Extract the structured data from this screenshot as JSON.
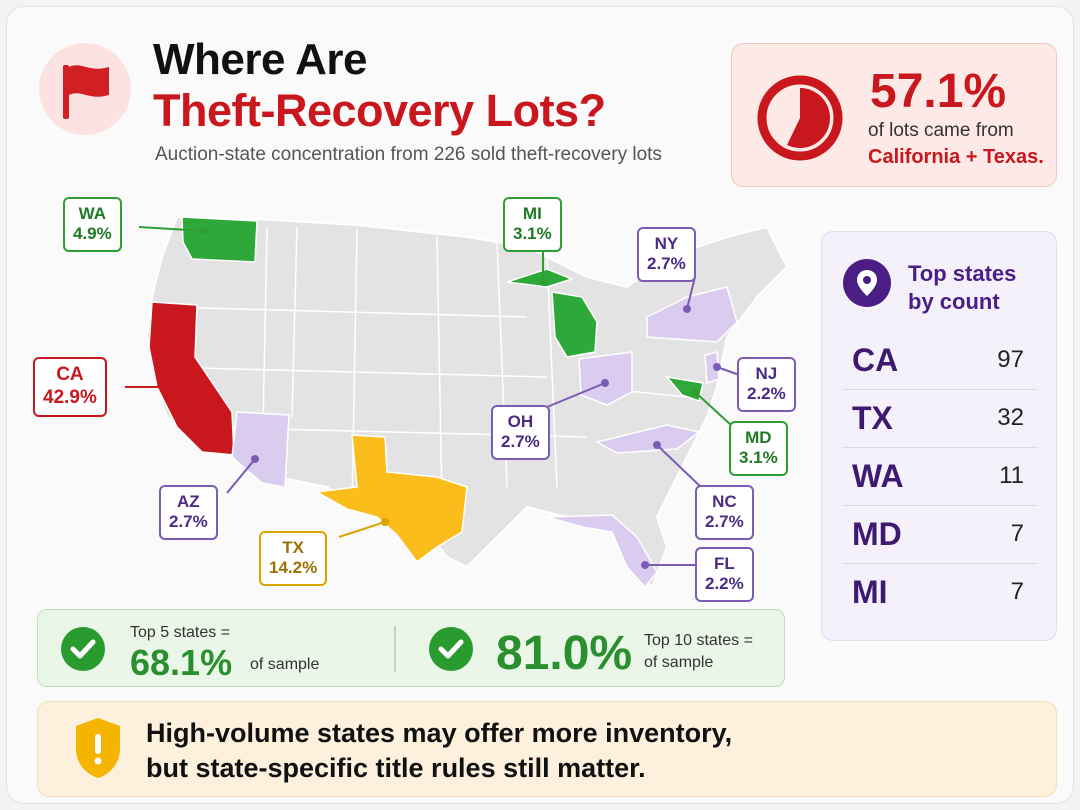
{
  "header": {
    "title_line1": "Where Are",
    "title_line2": "Theft-Recovery Lots?",
    "subtitle": "Auction-state concentration from 226 sold theft-recovery lots",
    "icon": "flag-icon"
  },
  "headline_stat": {
    "percent": "57.1%",
    "line1": "of lots came from",
    "line2": "California + Texas.",
    "pie_share": 0.571
  },
  "map": {
    "callouts": [
      {
        "state": "WA",
        "pct": "4.9%",
        "tier": "green"
      },
      {
        "state": "MI",
        "pct": "3.1%",
        "tier": "green"
      },
      {
        "state": "NY",
        "pct": "2.7%",
        "tier": "purple"
      },
      {
        "state": "CA",
        "pct": "42.9%",
        "tier": "red"
      },
      {
        "state": "NJ",
        "pct": "2.2%",
        "tier": "purple"
      },
      {
        "state": "OH",
        "pct": "2.7%",
        "tier": "purple"
      },
      {
        "state": "MD",
        "pct": "3.1%",
        "tier": "green"
      },
      {
        "state": "AZ",
        "pct": "2.7%",
        "tier": "purple"
      },
      {
        "state": "NC",
        "pct": "2.7%",
        "tier": "purple"
      },
      {
        "state": "TX",
        "pct": "14.2%",
        "tier": "gold"
      },
      {
        "state": "FL",
        "pct": "2.2%",
        "tier": "purple"
      }
    ],
    "colors": {
      "red": "#c8171d",
      "gold": "#fbbd1c",
      "green": "#2fa83a",
      "purple": "#d9ccef",
      "base": "#e3e3e3"
    }
  },
  "top_states": {
    "title_line1": "Top states",
    "title_line2": "by count",
    "icon": "location-pin-icon",
    "rows": [
      {
        "state": "CA",
        "count": "97"
      },
      {
        "state": "TX",
        "count": "32"
      },
      {
        "state": "WA",
        "count": "11"
      },
      {
        "state": "MD",
        "count": "7"
      },
      {
        "state": "MI",
        "count": "7"
      }
    ]
  },
  "shares": {
    "top5_label": "Top 5 states =",
    "top5_value": "68.1%",
    "top5_suffix": "of sample",
    "top10_value": "81.0%",
    "top10_label": "Top 10 states =",
    "top10_suffix": "of sample"
  },
  "warning": {
    "line1": "High-volume states may offer more inventory,",
    "line2": "but state-specific title rules still matter.",
    "icon": "shield-warning-icon"
  }
}
